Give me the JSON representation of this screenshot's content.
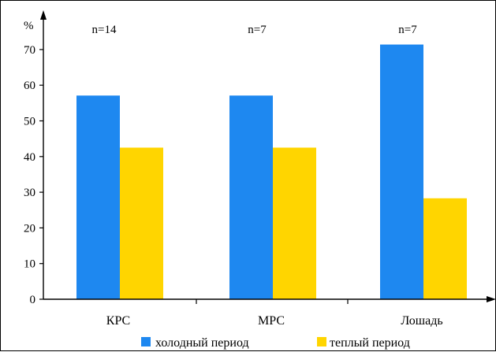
{
  "chart_data": {
    "type": "bar",
    "ylabel": "%",
    "ylim": [
      0,
      80
    ],
    "yticks": [
      0,
      10,
      20,
      30,
      40,
      50,
      60,
      70
    ],
    "categories": [
      "КРС",
      "МРС",
      "Лошадь"
    ],
    "group_annotations": [
      "n=14",
      "n=7",
      "n=7"
    ],
    "series": [
      {
        "name": "холодный период",
        "color": "#1e88f0",
        "values": [
          57.1,
          57.1,
          71.4
        ]
      },
      {
        "name": "теплый период",
        "color": "#ffd500",
        "values": [
          42.5,
          42.5,
          28.3
        ]
      }
    ],
    "grid": false,
    "legend_position": "bottom"
  }
}
